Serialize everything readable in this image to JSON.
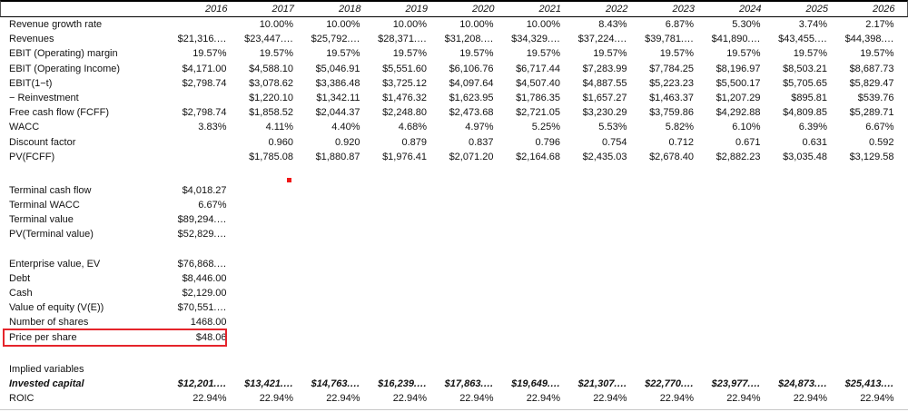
{
  "header": {
    "years": [
      "2016",
      "2017",
      "2018",
      "2019",
      "2020",
      "2021",
      "2022",
      "2023",
      "2024",
      "2025",
      "2026"
    ]
  },
  "table": {
    "sections": [
      {
        "name": "forecast",
        "gap_before": 0,
        "rows": [
          {
            "label": "Revenue growth rate",
            "values": [
              "",
              "10.00%",
              "10.00%",
              "10.00%",
              "10.00%",
              "10.00%",
              "8.43%",
              "6.87%",
              "5.30%",
              "3.74%",
              "2.17%"
            ]
          },
          {
            "label": "Revenues",
            "values": [
              "$21,316.…",
              "$23,447.…",
              "$25,792.…",
              "$28,371.…",
              "$31,208.…",
              "$34,329.…",
              "$37,224.…",
              "$39,781.…",
              "$41,890.…",
              "$43,455.…",
              "$44,398.…"
            ]
          },
          {
            "label": "EBIT (Operating) margin",
            "values": [
              "19.57%",
              "19.57%",
              "19.57%",
              "19.57%",
              "19.57%",
              "19.57%",
              "19.57%",
              "19.57%",
              "19.57%",
              "19.57%",
              "19.57%"
            ]
          },
          {
            "label": "EBIT (Operating Income)",
            "values": [
              "$4,171.00",
              "$4,588.10",
              "$5,046.91",
              "$5,551.60",
              "$6,106.76",
              "$6,717.44",
              "$7,283.99",
              "$7,784.25",
              "$8,196.97",
              "$8,503.21",
              "$8,687.73"
            ]
          },
          {
            "label": "EBIT(1−t)",
            "values": [
              "$2,798.74",
              "$3,078.62",
              "$3,386.48",
              "$3,725.12",
              "$4,097.64",
              "$4,507.40",
              "$4,887.55",
              "$5,223.23",
              "$5,500.17",
              "$5,705.65",
              "$5,829.47"
            ]
          },
          {
            "label": "− Reinvestment",
            "values": [
              "",
              "$1,220.10",
              "$1,342.11",
              "$1,476.32",
              "$1,623.95",
              "$1,786.35",
              "$1,657.27",
              "$1,463.37",
              "$1,207.29",
              "$895.81",
              "$539.76"
            ]
          },
          {
            "label": "Free cash flow (FCFF)",
            "values": [
              "$2,798.74",
              "$1,858.52",
              "$2,044.37",
              "$2,248.80",
              "$2,473.68",
              "$2,721.05",
              "$3,230.29",
              "$3,759.86",
              "$4,292.88",
              "$4,809.85",
              "$5,289.71"
            ]
          },
          {
            "label": "WACC",
            "values": [
              "3.83%",
              "4.11%",
              "4.40%",
              "4.68%",
              "4.97%",
              "5.25%",
              "5.53%",
              "5.82%",
              "6.10%",
              "6.39%",
              "6.67%"
            ]
          },
          {
            "label": "Discount factor",
            "values": [
              "",
              "0.960",
              "0.920",
              "0.879",
              "0.837",
              "0.796",
              "0.754",
              "0.712",
              "0.671",
              "0.631",
              "0.592"
            ]
          },
          {
            "label": "PV(FCFF)",
            "values": [
              "",
              "$1,785.08",
              "$1,880.87",
              "$1,976.41",
              "$2,071.20",
              "$2,164.68",
              "$2,435.03",
              "$2,678.40",
              "$2,882.23",
              "$3,035.48",
              "$3,129.58"
            ]
          }
        ]
      },
      {
        "name": "terminal",
        "gap_before": 21,
        "rows": [
          {
            "label": "Terminal cash flow",
            "values": [
              "$4,018.27"
            ]
          },
          {
            "label": "Terminal WACC",
            "values": [
              "6.67%"
            ]
          },
          {
            "label": "Terminal value",
            "values": [
              "$89,294.…"
            ]
          },
          {
            "label": "PV(Terminal value)",
            "values": [
              "$52,829.…"
            ]
          }
        ]
      },
      {
        "name": "valuation",
        "gap_before": 16,
        "rows": [
          {
            "label": "Enterprise value, EV",
            "values": [
              "$76,868.…"
            ]
          },
          {
            "label": "Debt",
            "values": [
              "$8,446.00"
            ]
          },
          {
            "label": "Cash",
            "values": [
              "$2,129.00"
            ]
          },
          {
            "label": "Value of equity (V(E))",
            "values": [
              "$70,551.…"
            ]
          },
          {
            "label": "Number of shares",
            "values": [
              "1468.00"
            ]
          },
          {
            "label": "Price per share",
            "values": [
              "$48.06"
            ],
            "boxed": true
          }
        ]
      },
      {
        "name": "implied",
        "gap_before": 19,
        "rows": [
          {
            "label": "Implied variables",
            "values": []
          },
          {
            "label": "Invested capital",
            "values": [
              "$12,201.…",
              "$13,421.…",
              "$14,763.…",
              "$16,239.…",
              "$17,863.…",
              "$19,649.…",
              "$21,307.…",
              "$22,770.…",
              "$23,977.…",
              "$24,873.…",
              "$25,413.…"
            ],
            "bold_italic": true
          },
          {
            "label": "ROIC",
            "values": [
              "22.94%",
              "22.94%",
              "22.94%",
              "22.94%",
              "22.94%",
              "22.94%",
              "22.94%",
              "22.94%",
              "22.94%",
              "22.94%",
              "22.94%"
            ]
          }
        ]
      }
    ]
  },
  "annotations": {
    "highlight_box_color": "#e5242b",
    "dot_color": "#f01818"
  }
}
